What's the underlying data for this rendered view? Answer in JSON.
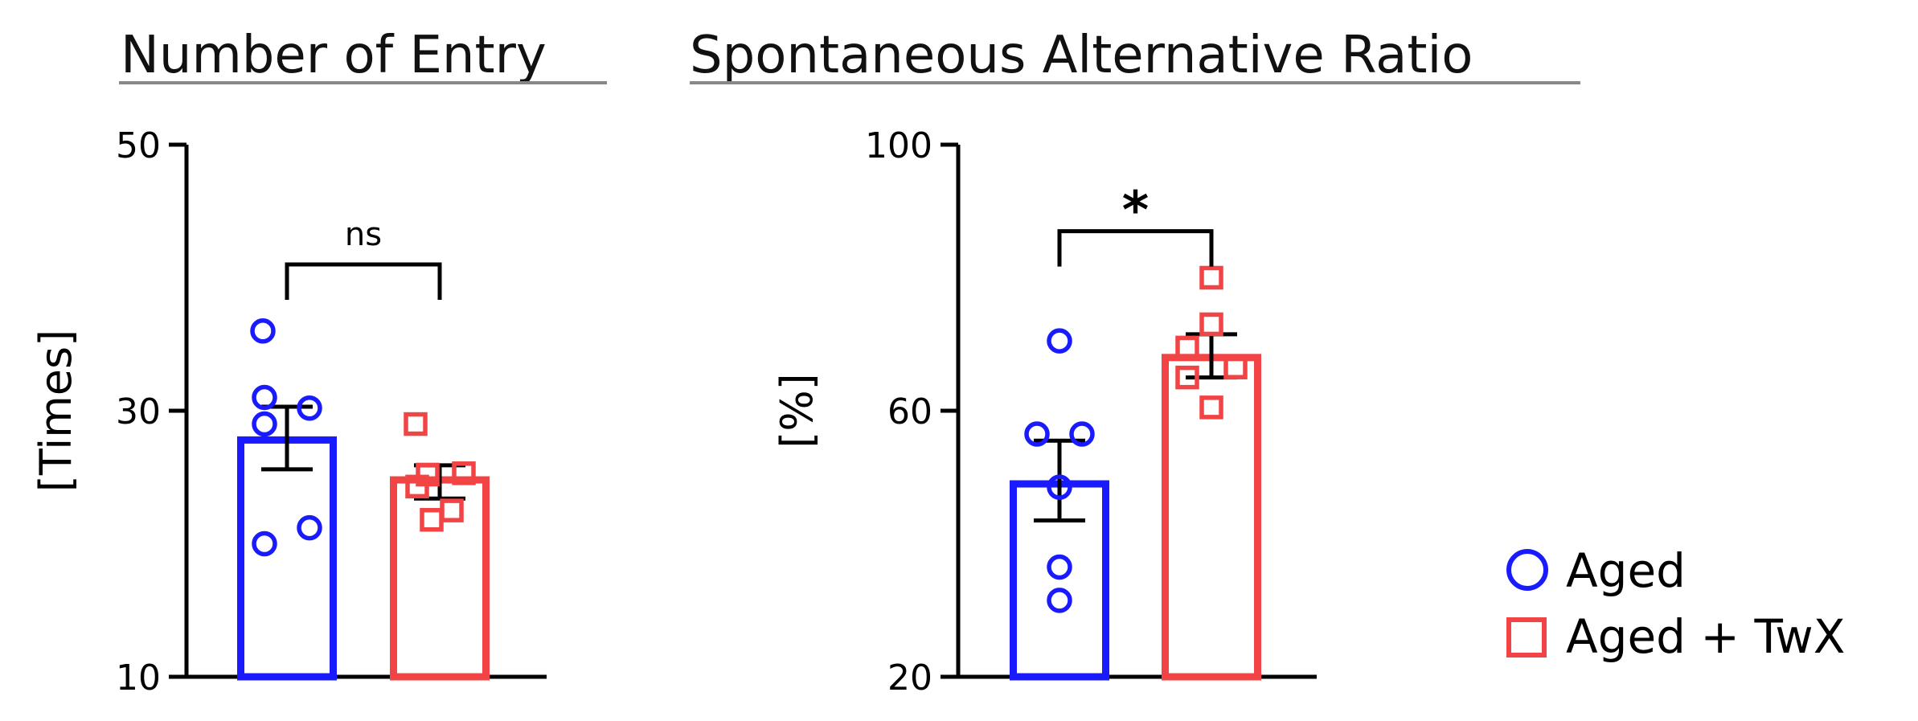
{
  "colors": {
    "aged": "#1a1aff",
    "twx": "#f24444",
    "axis": "#000000"
  },
  "legend": {
    "placement": "bottom-right",
    "items": [
      {
        "label": "Aged",
        "marker": "circle-icon",
        "color": "#1a1aff"
      },
      {
        "label": "Aged + TwX",
        "marker": "square-icon",
        "color": "#f24444"
      }
    ]
  },
  "chart_data": [
    {
      "type": "bar",
      "title": "Number of Entry",
      "ylabel": "[Times]",
      "ylim": [
        10,
        50
      ],
      "yticks": [
        "10",
        "30",
        "50"
      ],
      "yticks_values": [
        10,
        30,
        50
      ],
      "categories": [
        "Aged",
        "Aged + TwX"
      ],
      "series": [
        {
          "name": "Aged",
          "color": "#1a1aff",
          "marker": "circle",
          "mean": 27.8,
          "sem_low": 25.6,
          "sem_high": 30.3,
          "points": [
            36.0,
            31.0,
            30.2,
            29.0,
            21.2,
            20.0
          ]
        },
        {
          "name": "Aged + TwX",
          "color": "#f24444",
          "marker": "square",
          "mean": 24.8,
          "sem_low": 23.4,
          "sem_high": 25.9,
          "points": [
            29.0,
            25.3,
            25.2,
            24.3,
            22.5,
            21.8
          ]
        }
      ],
      "significance": {
        "label": "ns",
        "between": [
          0,
          1
        ],
        "y": 41.0
      }
    },
    {
      "type": "bar",
      "title": "Spontaneous Alternative Ratio",
      "ylabel": "[%]",
      "ylim": [
        20,
        100
      ],
      "yticks": [
        "20",
        "60",
        "100"
      ],
      "yticks_values": [
        20,
        60,
        100
      ],
      "categories": [
        "Aged",
        "Aged + TwX"
      ],
      "series": [
        {
          "name": "Aged",
          "color": "#1a1aff",
          "marker": "circle",
          "mean": 49.0,
          "sem_low": 43.5,
          "sem_high": 55.5,
          "points": [
            70.5,
            56.5,
            56.5,
            48.5,
            36.5,
            31.5
          ]
        },
        {
          "name": "Aged + TwX",
          "color": "#f24444",
          "marker": "square",
          "mean": 68.0,
          "sem_low": 65.0,
          "sem_high": 71.5,
          "points": [
            80.0,
            73.0,
            69.5,
            66.5,
            65.0,
            60.5
          ]
        }
      ],
      "significance": {
        "label": "*",
        "between": [
          0,
          1
        ],
        "y": 87.0
      }
    }
  ]
}
